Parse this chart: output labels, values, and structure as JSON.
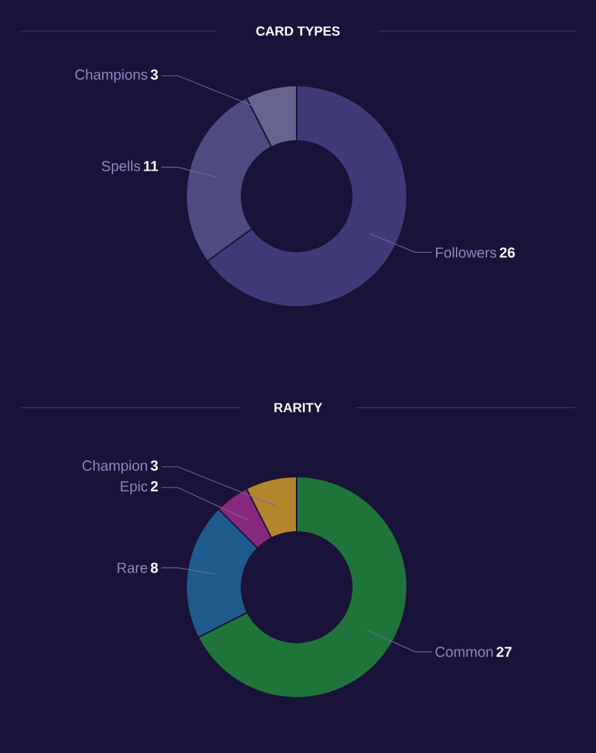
{
  "chart_data": [
    {
      "type": "donut",
      "title": "CARD TYPES",
      "categories": [
        "Followers",
        "Spells",
        "Champions"
      ],
      "values": [
        26,
        11,
        3
      ],
      "colors": [
        "#403a78",
        "#4e4a82",
        "#67648f"
      ],
      "data_labels": true
    },
    {
      "type": "donut",
      "title": "RARITY",
      "categories": [
        "Common",
        "Rare",
        "Epic",
        "Champion"
      ],
      "values": [
        27,
        8,
        2,
        3
      ],
      "colors": [
        "#1f743a",
        "#1f5a8c",
        "#87287e",
        "#b4862c"
      ],
      "data_labels": true
    }
  ]
}
